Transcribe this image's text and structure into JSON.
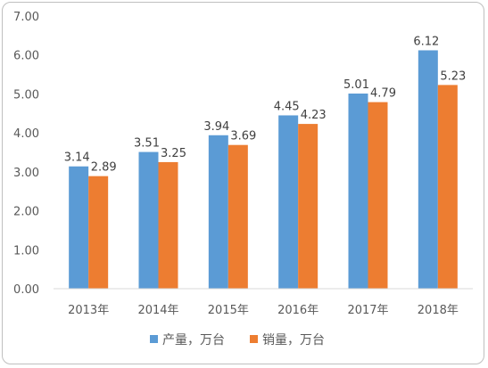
{
  "chart_data": {
    "type": "bar",
    "categories": [
      "2013年",
      "2014年",
      "2015年",
      "2016年",
      "2017年",
      "2018年"
    ],
    "series": [
      {
        "name": "产量，万台",
        "values": [
          3.14,
          3.51,
          3.94,
          4.45,
          5.01,
          6.12
        ],
        "color": "#5b9bd5"
      },
      {
        "name": "销量，万台",
        "values": [
          2.89,
          3.25,
          3.69,
          4.23,
          4.79,
          5.23
        ],
        "color": "#ed7d31"
      }
    ],
    "y_ticks": [
      "0.00",
      "1.00",
      "2.00",
      "3.00",
      "4.00",
      "5.00",
      "6.00",
      "7.00"
    ],
    "ylim": [
      0,
      7
    ],
    "grid": false,
    "legend_position": "bottom",
    "title": "",
    "xlabel": "",
    "ylabel": ""
  }
}
